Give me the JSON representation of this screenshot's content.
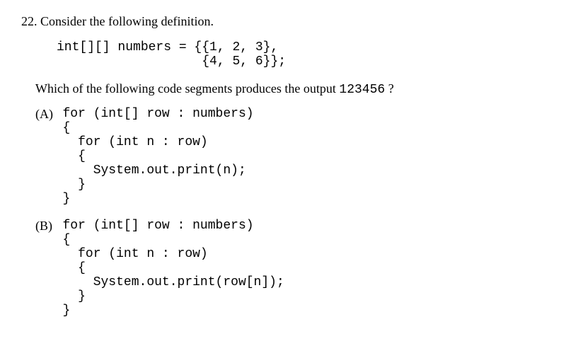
{
  "question": {
    "number": "22.",
    "stem": "Consider the following definition.",
    "definition_code": "int[][] numbers = {{1, 2, 3},\n                   {4, 5, 6}};",
    "prompt_pre": "Which of the following code segments produces the output ",
    "prompt_code": "123456",
    "prompt_post": " ?"
  },
  "choices": [
    {
      "label": "(A)",
      "code": "for (int[] row : numbers)\n{\n  for (int n : row)\n  {\n    System.out.print(n);\n  }\n}"
    },
    {
      "label": "(B)",
      "code": "for (int[] row : numbers)\n{\n  for (int n : row)\n  {\n    System.out.print(row[n]);\n  }\n}"
    }
  ],
  "style": {
    "background_color": "#ffffff",
    "text_color": "#000000",
    "body_font": "Times New Roman",
    "code_font": "Courier New",
    "font_size_pt": 14
  }
}
